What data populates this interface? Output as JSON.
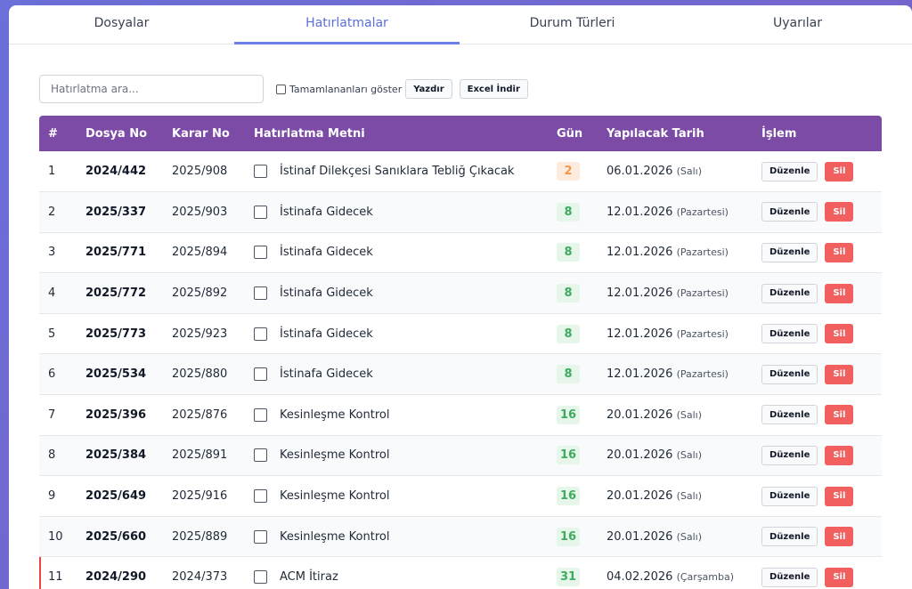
{
  "tabs": [
    {
      "label": "Dosyalar",
      "active": false
    },
    {
      "label": "Hatırlatmalar",
      "active": true
    },
    {
      "label": "Durum Türleri",
      "active": false
    },
    {
      "label": "Uyarılar",
      "active": false
    }
  ],
  "toolbar": {
    "search_placeholder": "Hatırlatma ara...",
    "show_completed_label": "Tamamlananları göster",
    "print_label": "Yazdır",
    "excel_label": "Excel İndir"
  },
  "table": {
    "headers": [
      "#",
      "Dosya No",
      "Karar No",
      "Hatırlatma Metni",
      "Gün",
      "Yapılacak Tarih",
      "İşlem"
    ],
    "edit_label": "Düzenle",
    "delete_label": "Sil",
    "rows": [
      {
        "no": "1",
        "dosya": "2024/442",
        "karar": "2025/908",
        "metin": "İstinaf Dilekçesi Sanıklara Tebliğ Çıkacak",
        "gun": "2",
        "gun_status": "orange",
        "tarih": "06.01.2026",
        "gun_adi": "(Salı)",
        "flag": false
      },
      {
        "no": "2",
        "dosya": "2025/337",
        "karar": "2025/903",
        "metin": "İstinafa Gidecek",
        "gun": "8",
        "gun_status": "green",
        "tarih": "12.01.2026",
        "gun_adi": "(Pazartesi)",
        "flag": false
      },
      {
        "no": "3",
        "dosya": "2025/771",
        "karar": "2025/894",
        "metin": "İstinafa Gidecek",
        "gun": "8",
        "gun_status": "green",
        "tarih": "12.01.2026",
        "gun_adi": "(Pazartesi)",
        "flag": false
      },
      {
        "no": "4",
        "dosya": "2025/772",
        "karar": "2025/892",
        "metin": "İstinafa Gidecek",
        "gun": "8",
        "gun_status": "green",
        "tarih": "12.01.2026",
        "gun_adi": "(Pazartesi)",
        "flag": false
      },
      {
        "no": "5",
        "dosya": "2025/773",
        "karar": "2025/923",
        "metin": "İstinafa Gidecek",
        "gun": "8",
        "gun_status": "green",
        "tarih": "12.01.2026",
        "gun_adi": "(Pazartesi)",
        "flag": false
      },
      {
        "no": "6",
        "dosya": "2025/534",
        "karar": "2025/880",
        "metin": "İstinafa Gidecek",
        "gun": "8",
        "gun_status": "green",
        "tarih": "12.01.2026",
        "gun_adi": "(Pazartesi)",
        "flag": false
      },
      {
        "no": "7",
        "dosya": "2025/396",
        "karar": "2025/876",
        "metin": "Kesinleşme Kontrol",
        "gun": "16",
        "gun_status": "green",
        "tarih": "20.01.2026",
        "gun_adi": "(Salı)",
        "flag": false
      },
      {
        "no": "8",
        "dosya": "2025/384",
        "karar": "2025/891",
        "metin": "Kesinleşme Kontrol",
        "gun": "16",
        "gun_status": "green",
        "tarih": "20.01.2026",
        "gun_adi": "(Salı)",
        "flag": false
      },
      {
        "no": "9",
        "dosya": "2025/649",
        "karar": "2025/916",
        "metin": "Kesinleşme Kontrol",
        "gun": "16",
        "gun_status": "green",
        "tarih": "20.01.2026",
        "gun_adi": "(Salı)",
        "flag": false
      },
      {
        "no": "10",
        "dosya": "2025/660",
        "karar": "2025/889",
        "metin": "Kesinleşme Kontrol",
        "gun": "16",
        "gun_status": "green",
        "tarih": "20.01.2026",
        "gun_adi": "(Salı)",
        "flag": false
      },
      {
        "no": "11",
        "dosya": "2024/290",
        "karar": "2024/373",
        "metin": "ACM İtiraz",
        "gun": "31",
        "gun_status": "green",
        "tarih": "04.02.2026",
        "gun_adi": "(Çarşamba)",
        "flag": true
      }
    ]
  },
  "colors": {
    "header_bg": "#7b4ba6",
    "tab_active": "#5b6ee1",
    "delete_bg": "#f25f5f",
    "badge_green": "#3eab5e",
    "badge_orange": "#f2994a"
  }
}
